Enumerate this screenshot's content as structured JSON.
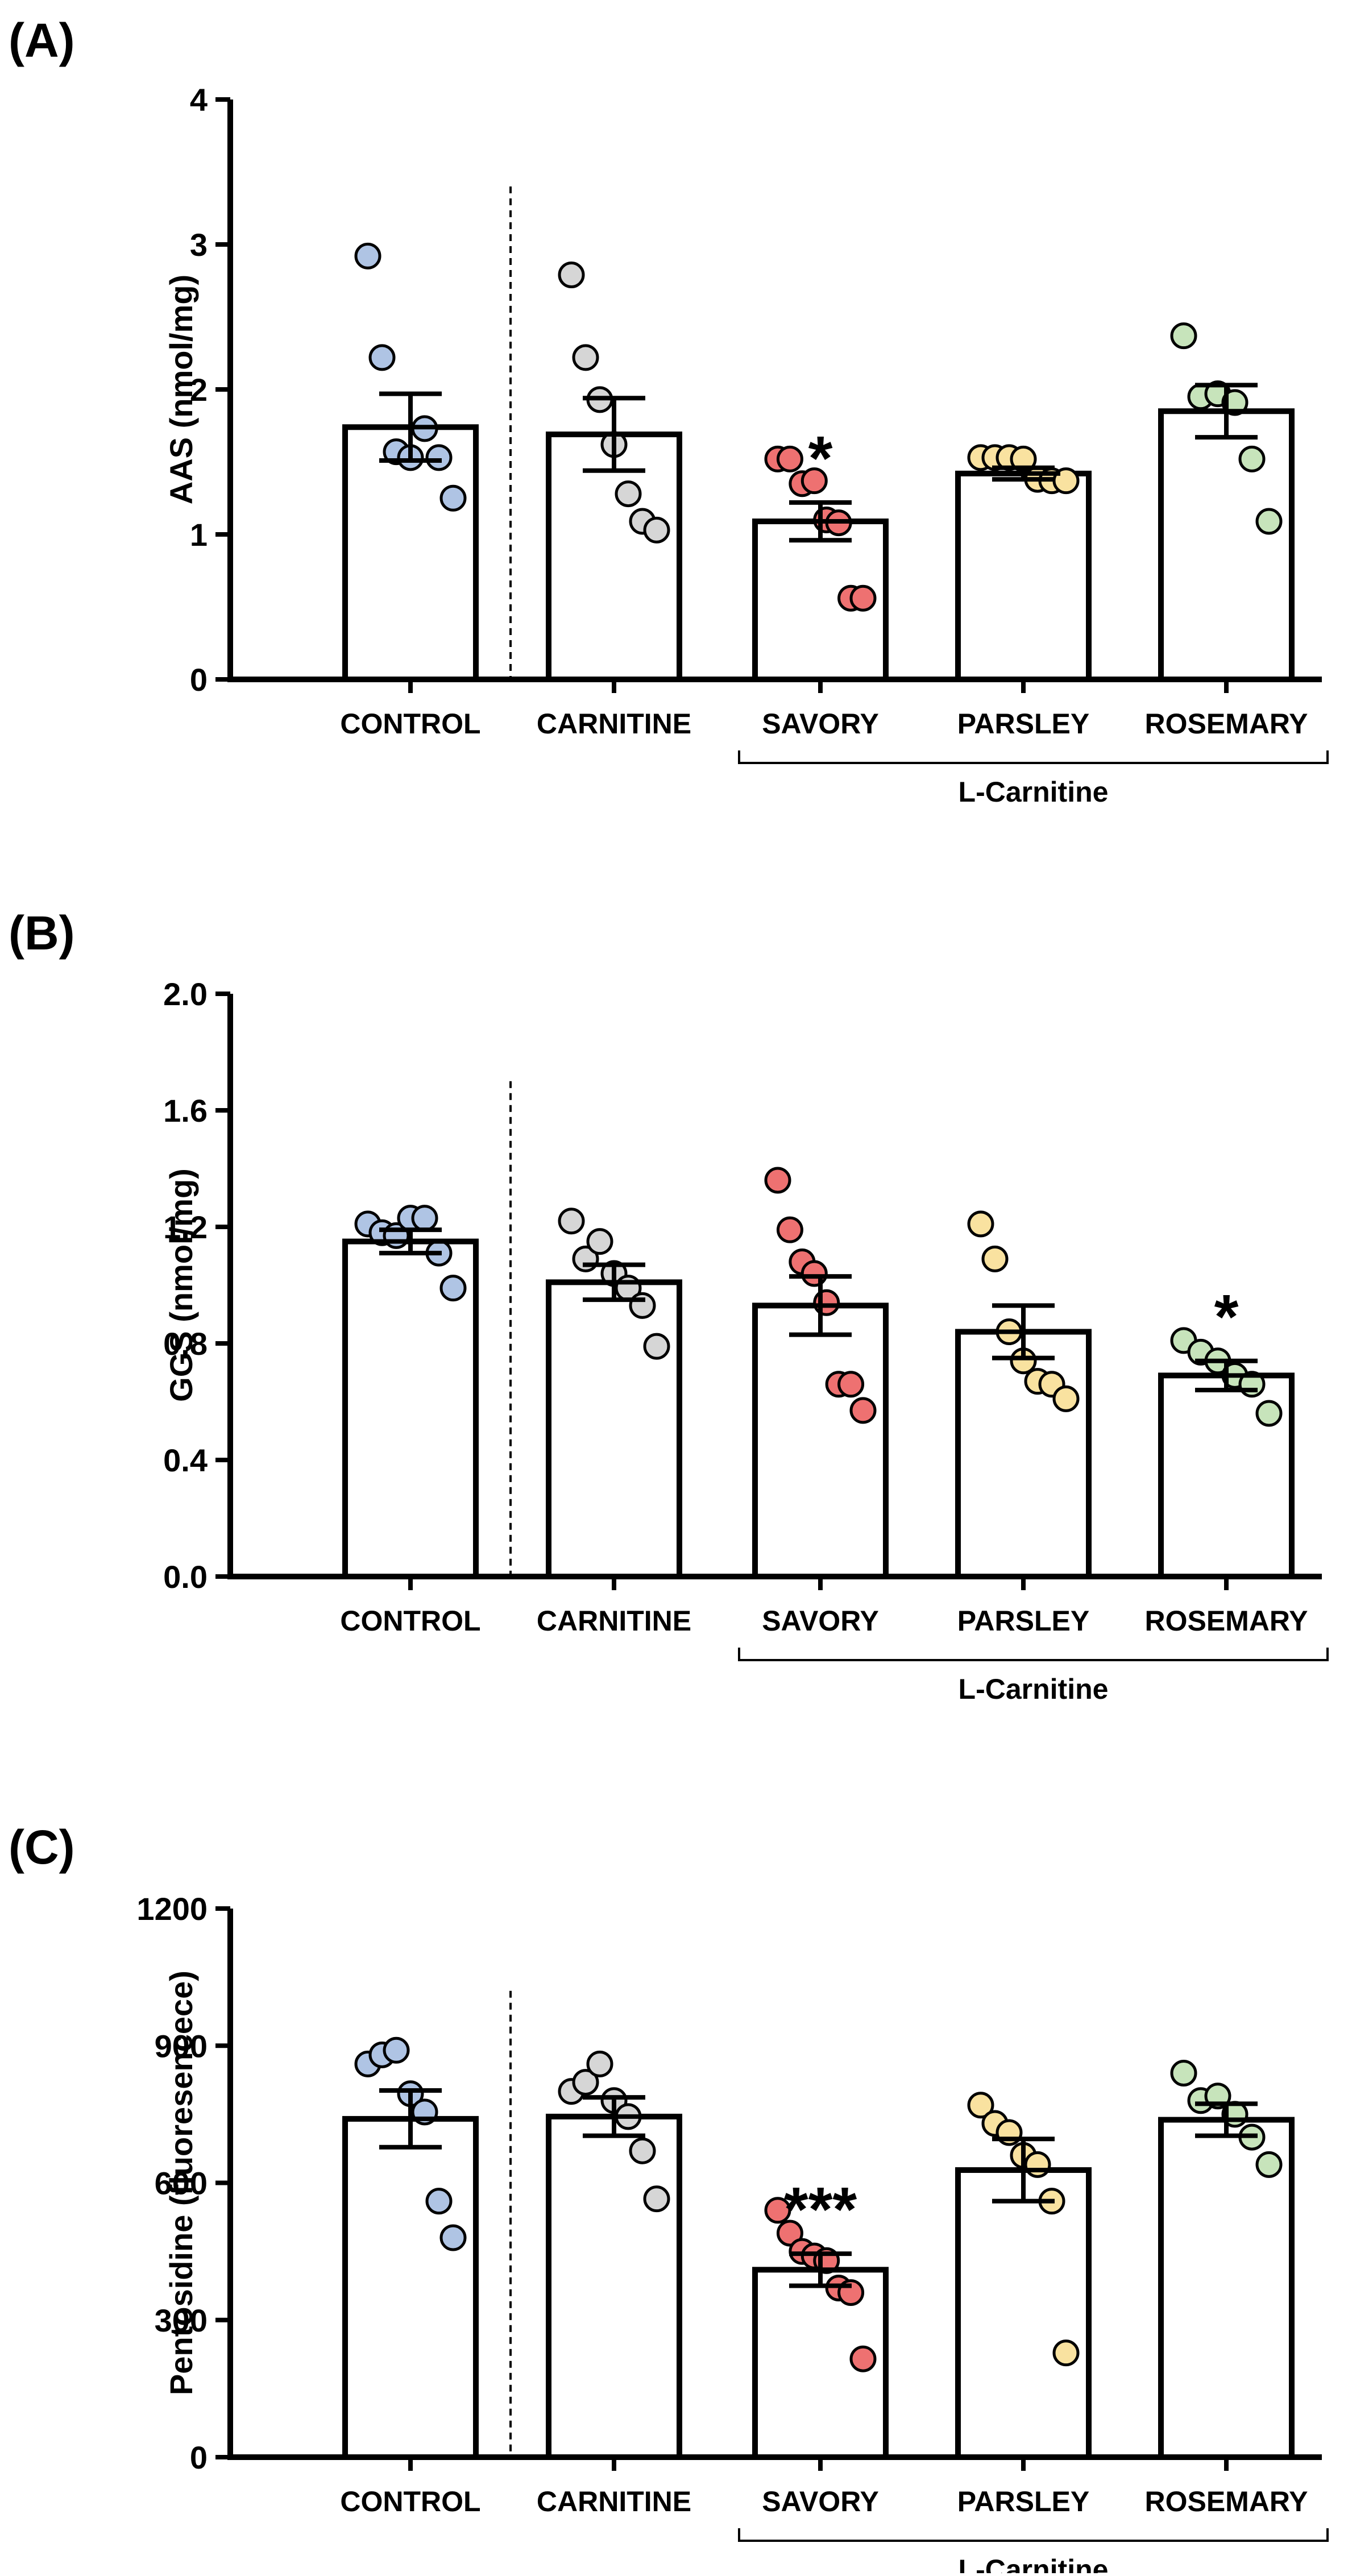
{
  "bracket_label": "L-Carnitine",
  "chart_data": [
    {
      "panel_label": "(A)",
      "type": "bar",
      "ylabel": "AAS (nmol/mg)",
      "ylim": [
        0,
        4
      ],
      "yticks": [
        "0",
        "1",
        "2",
        "3",
        "4"
      ],
      "yticks_values": [
        0,
        1,
        2,
        3,
        4
      ],
      "categories": [
        "CONTROL",
        "CARNITINE",
        "SAVORY",
        "PARSLEY",
        "ROSEMARY"
      ],
      "values": [
        1.74,
        1.69,
        1.09,
        1.42,
        1.85
      ],
      "sem": [
        0.23,
        0.25,
        0.13,
        0.04,
        0.18
      ],
      "points": [
        [
          2.92,
          2.22,
          1.57,
          1.53,
          1.73,
          1.53,
          1.25
        ],
        [
          2.79,
          2.22,
          1.93,
          1.62,
          1.28,
          1.09,
          1.03
        ],
        [
          1.52,
          1.52,
          1.35,
          1.37,
          1.1,
          1.08,
          0.56,
          0.56
        ],
        [
          1.53,
          1.53,
          1.53,
          1.52,
          1.38,
          1.37,
          1.37
        ],
        [
          2.37,
          1.95,
          1.97,
          1.91,
          1.52,
          1.09
        ]
      ],
      "significance": [
        "",
        "",
        "*",
        "",
        ""
      ],
      "dashed_separator": true,
      "grid": false
    },
    {
      "panel_label": "(B)",
      "type": "bar",
      "ylabel": "GGS (nmol/mg)",
      "ylim": [
        0,
        2
      ],
      "yticks": [
        "0.0",
        "0.4",
        "0.8",
        "1.2",
        "1.6",
        "2.0"
      ],
      "yticks_values": [
        0,
        0.4,
        0.8,
        1.2,
        1.6,
        2.0
      ],
      "categories": [
        "CONTROL",
        "CARNITINE",
        "SAVORY",
        "PARSLEY",
        "ROSEMARY"
      ],
      "values": [
        1.15,
        1.01,
        0.93,
        0.84,
        0.69
      ],
      "sem": [
        0.04,
        0.06,
        0.1,
        0.09,
        0.05
      ],
      "points": [
        [
          1.21,
          1.18,
          1.17,
          1.23,
          1.23,
          1.11,
          0.99
        ],
        [
          1.22,
          1.09,
          1.15,
          1.04,
          0.99,
          0.93,
          0.79
        ],
        [
          1.36,
          1.19,
          1.08,
          1.04,
          0.94,
          0.66,
          0.66,
          0.57
        ],
        [
          1.21,
          1.09,
          0.84,
          0.74,
          0.67,
          0.66,
          0.61
        ],
        [
          0.81,
          0.77,
          0.74,
          0.69,
          0.66,
          0.56
        ]
      ],
      "significance": [
        "",
        "",
        "",
        "",
        "*"
      ],
      "dashed_separator": true,
      "grid": false
    },
    {
      "panel_label": "(C)",
      "type": "bar",
      "ylabel": "Pentosidine (fluoresencece)",
      "ylim": [
        0,
        1200
      ],
      "yticks": [
        "0",
        "300",
        "600",
        "900",
        "1200"
      ],
      "yticks_values": [
        0,
        300,
        600,
        900,
        1200
      ],
      "categories": [
        "CONTROL",
        "CARNITINE",
        "SAVORY",
        "PARSLEY",
        "ROSEMARY"
      ],
      "values": [
        740,
        745,
        410,
        628,
        738
      ],
      "sem": [
        62,
        42,
        35,
        68,
        35
      ],
      "points": [
        [
          860,
          880,
          890,
          795,
          755,
          560,
          480
        ],
        [
          800,
          820,
          860,
          780,
          745,
          670,
          565
        ],
        [
          540,
          490,
          450,
          440,
          430,
          370,
          360,
          215
        ],
        [
          770,
          730,
          710,
          660,
          640,
          560,
          228
        ],
        [
          840,
          780,
          790,
          750,
          700,
          640
        ]
      ],
      "significance": [
        "",
        "",
        "***",
        "",
        ""
      ],
      "dashed_separator": true,
      "grid": false
    }
  ],
  "colors": {
    "dot_fills": [
      "#afc4e4",
      "#d6d6d6",
      "#ee7171",
      "#f9e2a0",
      "#c7e4bb"
    ],
    "bar_fill": "#ffffff",
    "stroke": "#000000"
  }
}
